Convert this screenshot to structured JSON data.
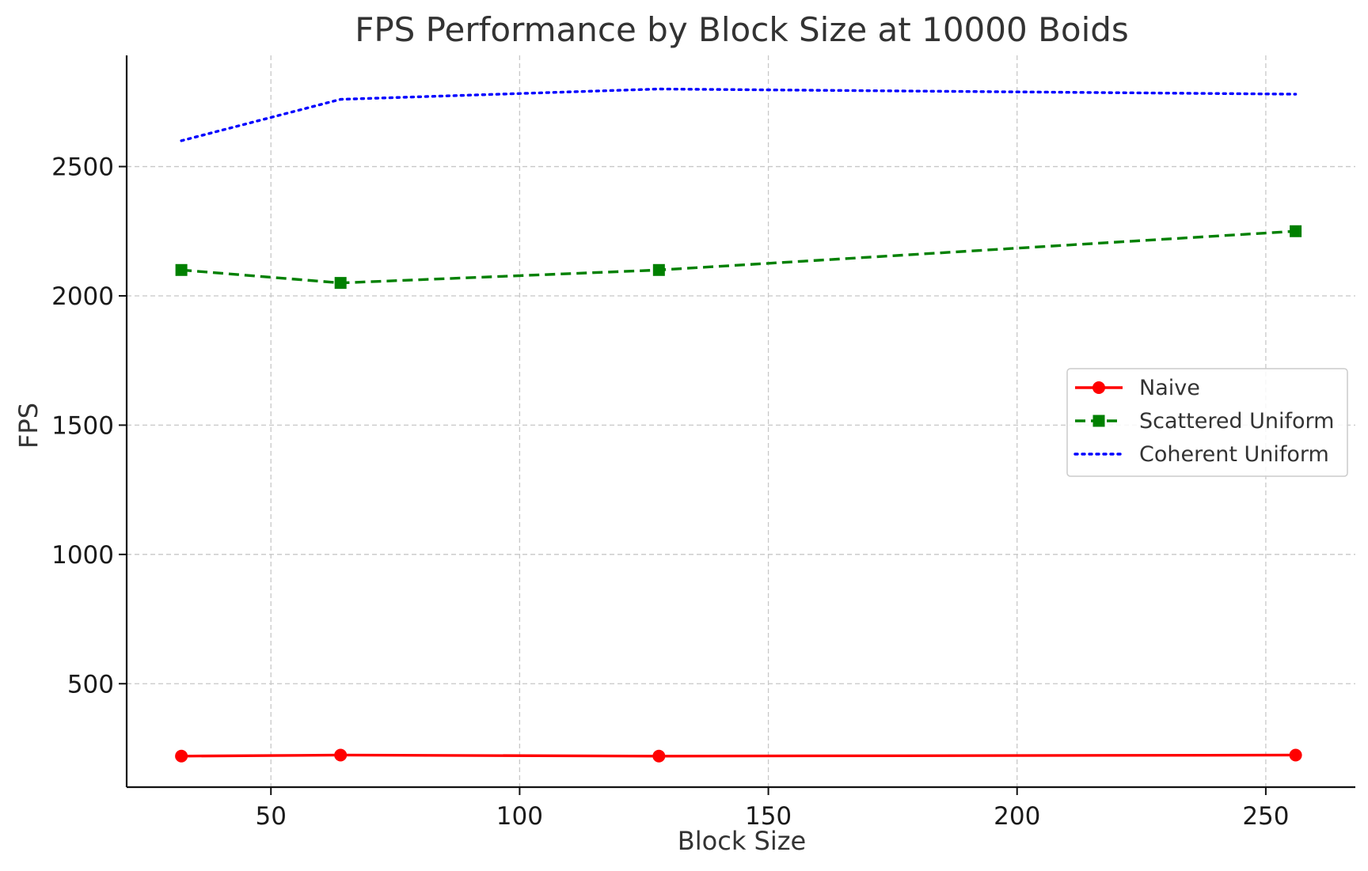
{
  "chart_data": {
    "type": "line",
    "title": "FPS Performance by Block Size at 10000 Boids",
    "xlabel": "Block Size",
    "ylabel": "FPS",
    "x": [
      32,
      64,
      128,
      256
    ],
    "xlim": [
      21,
      268
    ],
    "ylim": [
      100,
      2930
    ],
    "xticks": [
      50,
      100,
      150,
      200,
      250
    ],
    "yticks": [
      500,
      1000,
      1500,
      2000,
      2500
    ],
    "grid": true,
    "legend_position": "center-right",
    "series": [
      {
        "name": "Naive",
        "values": [
          220,
          224,
          220,
          224
        ],
        "color": "#ff0000",
        "line_style": "solid",
        "marker": "circle"
      },
      {
        "name": "Scattered Uniform",
        "values": [
          2100,
          2050,
          2100,
          2250
        ],
        "color": "#008000",
        "line_style": "dashed",
        "marker": "square"
      },
      {
        "name": "Coherent Uniform",
        "values": [
          2600,
          2760,
          2800,
          2780
        ],
        "color": "#0000ff",
        "line_style": "dotted",
        "marker": "none"
      }
    ]
  }
}
